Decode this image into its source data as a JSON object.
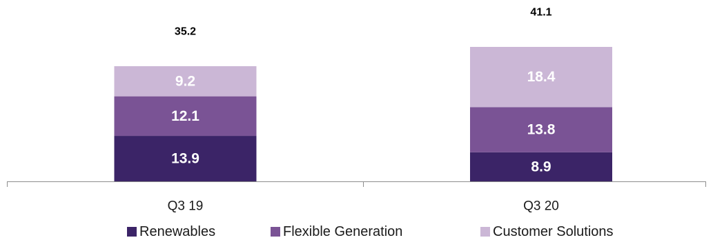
{
  "chart_data": {
    "type": "bar",
    "stacked": true,
    "categories": [
      "Q3 19",
      "Q3 20"
    ],
    "series": [
      {
        "name": "Renewables",
        "values": [
          13.9,
          8.9
        ],
        "color": "#3b2467"
      },
      {
        "name": "Flexible Generation",
        "values": [
          12.1,
          13.8
        ],
        "color": "#7a5395"
      },
      {
        "name": "Customer Solutions",
        "values": [
          9.2,
          18.4
        ],
        "color": "#cbb7d6"
      }
    ],
    "totals": [
      "35.2",
      "41.1"
    ],
    "value_labels": [
      [
        "13.9",
        "8.9"
      ],
      [
        "12.1",
        "13.8"
      ],
      [
        "9.2",
        "18.4"
      ]
    ],
    "title": "",
    "xlabel": "",
    "ylabel": "",
    "ylim": [
      0,
      41.1
    ],
    "grid": false,
    "legend_position": "bottom"
  }
}
